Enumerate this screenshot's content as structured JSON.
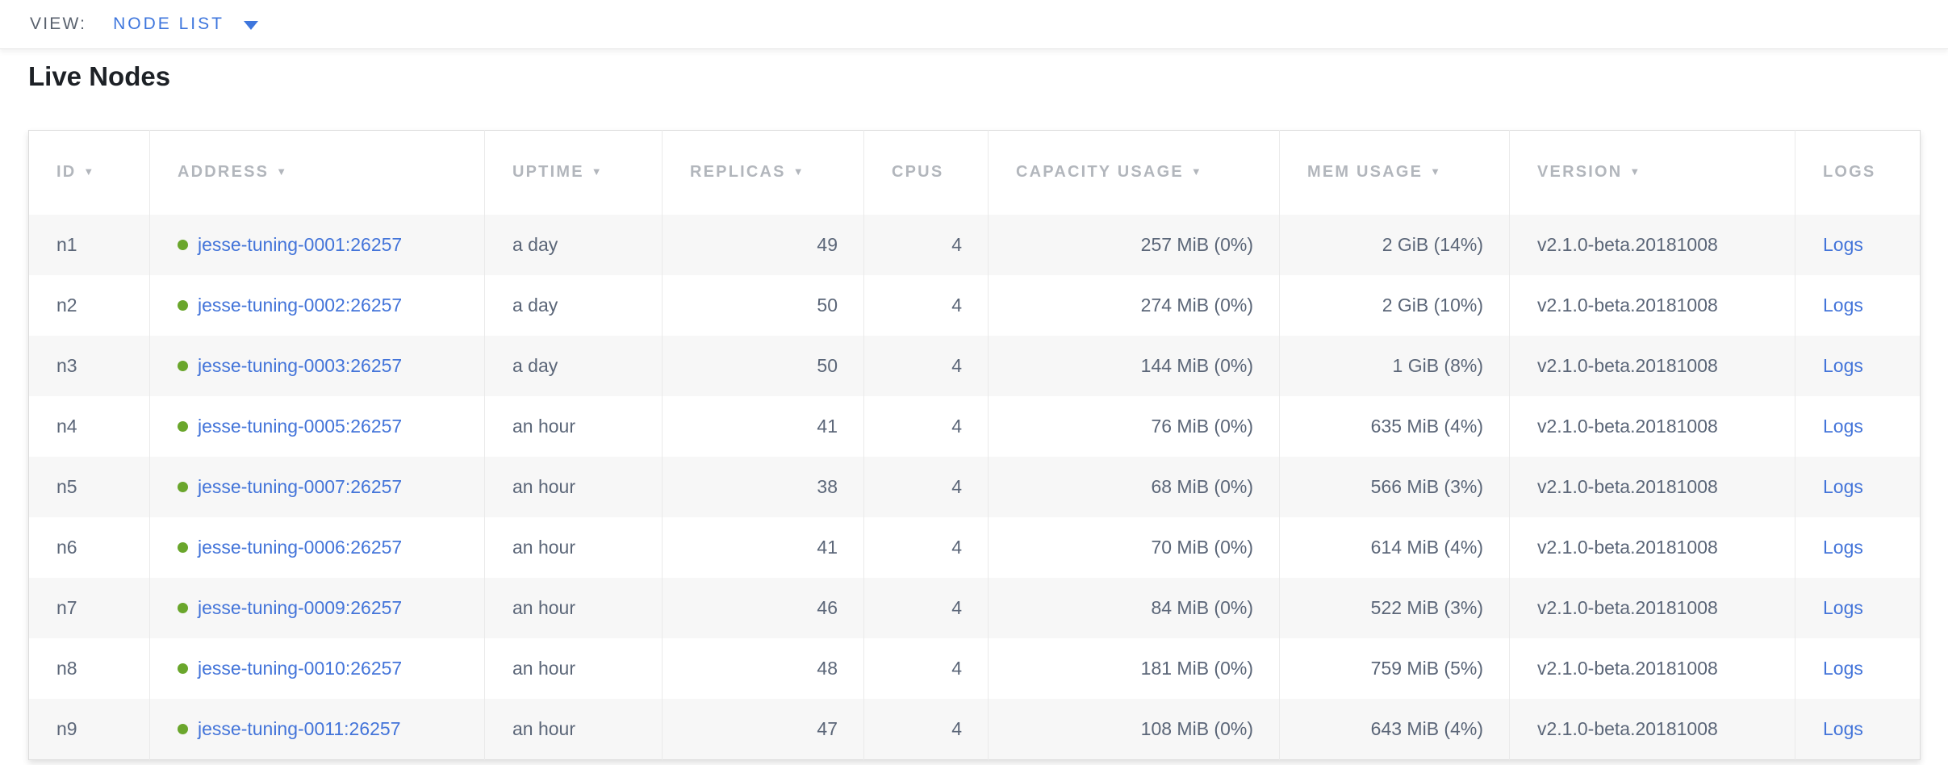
{
  "view_bar": {
    "label": "VIEW:",
    "selected": "NODE LIST",
    "caret_icon": "caret-down"
  },
  "page": {
    "title": "Live Nodes"
  },
  "icons": {
    "sort_arrow_glyph": "▼",
    "status_dot_meaning": "healthy"
  },
  "colors": {
    "link_blue": "#4374d9",
    "dropdown_blue": "#3e76dd",
    "healthy_green": "#6aa62c",
    "header_gray": "#b2b6bc",
    "cell_text": "#5b6678",
    "row_stripe": "#f7f7f7",
    "title_text": "#1d2126"
  },
  "table": {
    "columns": [
      {
        "key": "id",
        "label": "ID",
        "sortable": true
      },
      {
        "key": "address",
        "label": "ADDRESS",
        "sortable": true
      },
      {
        "key": "uptime",
        "label": "UPTIME",
        "sortable": true
      },
      {
        "key": "replicas",
        "label": "REPLICAS",
        "sortable": true
      },
      {
        "key": "cpus",
        "label": "CPUS",
        "sortable": false
      },
      {
        "key": "capacity_usage",
        "label": "CAPACITY USAGE",
        "sortable": true
      },
      {
        "key": "mem_usage",
        "label": "MEM USAGE",
        "sortable": true
      },
      {
        "key": "version",
        "label": "VERSION",
        "sortable": true
      },
      {
        "key": "logs",
        "label": "LOGS",
        "sortable": false
      }
    ],
    "rows": [
      {
        "id": "n1",
        "status": "healthy",
        "address": "jesse-tuning-0001:26257",
        "uptime": "a day",
        "replicas": "49",
        "cpus": "4",
        "capacity_usage": "257 MiB (0%)",
        "mem_usage": "2 GiB (14%)",
        "version": "v2.1.0-beta.20181008",
        "logs": "Logs"
      },
      {
        "id": "n2",
        "status": "healthy",
        "address": "jesse-tuning-0002:26257",
        "uptime": "a day",
        "replicas": "50",
        "cpus": "4",
        "capacity_usage": "274 MiB (0%)",
        "mem_usage": "2 GiB (10%)",
        "version": "v2.1.0-beta.20181008",
        "logs": "Logs"
      },
      {
        "id": "n3",
        "status": "healthy",
        "address": "jesse-tuning-0003:26257",
        "uptime": "a day",
        "replicas": "50",
        "cpus": "4",
        "capacity_usage": "144 MiB (0%)",
        "mem_usage": "1 GiB (8%)",
        "version": "v2.1.0-beta.20181008",
        "logs": "Logs"
      },
      {
        "id": "n4",
        "status": "healthy",
        "address": "jesse-tuning-0005:26257",
        "uptime": "an hour",
        "replicas": "41",
        "cpus": "4",
        "capacity_usage": "76 MiB (0%)",
        "mem_usage": "635 MiB (4%)",
        "version": "v2.1.0-beta.20181008",
        "logs": "Logs"
      },
      {
        "id": "n5",
        "status": "healthy",
        "address": "jesse-tuning-0007:26257",
        "uptime": "an hour",
        "replicas": "38",
        "cpus": "4",
        "capacity_usage": "68 MiB (0%)",
        "mem_usage": "566 MiB (3%)",
        "version": "v2.1.0-beta.20181008",
        "logs": "Logs"
      },
      {
        "id": "n6",
        "status": "healthy",
        "address": "jesse-tuning-0006:26257",
        "uptime": "an hour",
        "replicas": "41",
        "cpus": "4",
        "capacity_usage": "70 MiB (0%)",
        "mem_usage": "614 MiB (4%)",
        "version": "v2.1.0-beta.20181008",
        "logs": "Logs"
      },
      {
        "id": "n7",
        "status": "healthy",
        "address": "jesse-tuning-0009:26257",
        "uptime": "an hour",
        "replicas": "46",
        "cpus": "4",
        "capacity_usage": "84 MiB (0%)",
        "mem_usage": "522 MiB (3%)",
        "version": "v2.1.0-beta.20181008",
        "logs": "Logs"
      },
      {
        "id": "n8",
        "status": "healthy",
        "address": "jesse-tuning-0010:26257",
        "uptime": "an hour",
        "replicas": "48",
        "cpus": "4",
        "capacity_usage": "181 MiB (0%)",
        "mem_usage": "759 MiB (5%)",
        "version": "v2.1.0-beta.20181008",
        "logs": "Logs"
      },
      {
        "id": "n9",
        "status": "healthy",
        "address": "jesse-tuning-0011:26257",
        "uptime": "an hour",
        "replicas": "47",
        "cpus": "4",
        "capacity_usage": "108 MiB (0%)",
        "mem_usage": "643 MiB (4%)",
        "version": "v2.1.0-beta.20181008",
        "logs": "Logs"
      }
    ]
  }
}
